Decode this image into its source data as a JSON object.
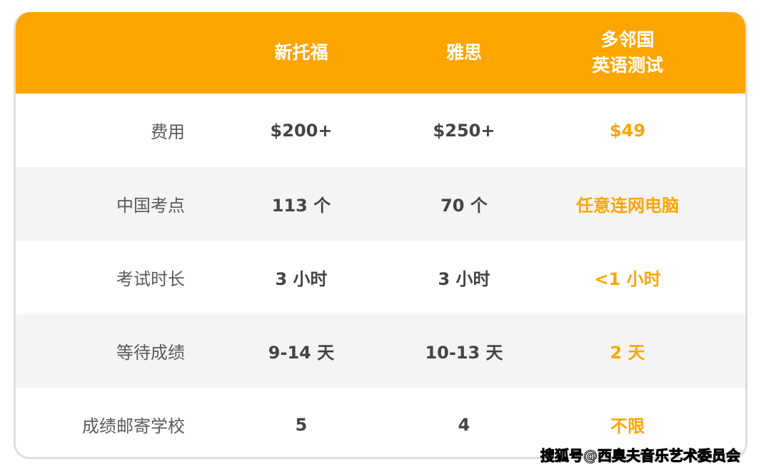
{
  "header": {
    "columns": [
      "新托福",
      "雅思",
      "多邻国\n英语测试"
    ]
  },
  "accent_color": "#fea500",
  "rows": [
    {
      "label": "费用",
      "values": [
        "$200+",
        "$250+",
        "$49"
      ]
    },
    {
      "label": "中国考点",
      "values": [
        "113 个",
        "70 个",
        "任意连网电脑"
      ]
    },
    {
      "label": "考试时长",
      "values": [
        "3 小时",
        "3 小时",
        "<1 小时"
      ]
    },
    {
      "label": "等待成绩",
      "values": [
        "9-14 天",
        "10-13 天",
        "2 天"
      ]
    },
    {
      "label": "成绩邮寄学校",
      "values": [
        "5",
        "4",
        "不限"
      ]
    }
  ],
  "watermark": "搜狐号@西奥夫音乐艺术委员会"
}
